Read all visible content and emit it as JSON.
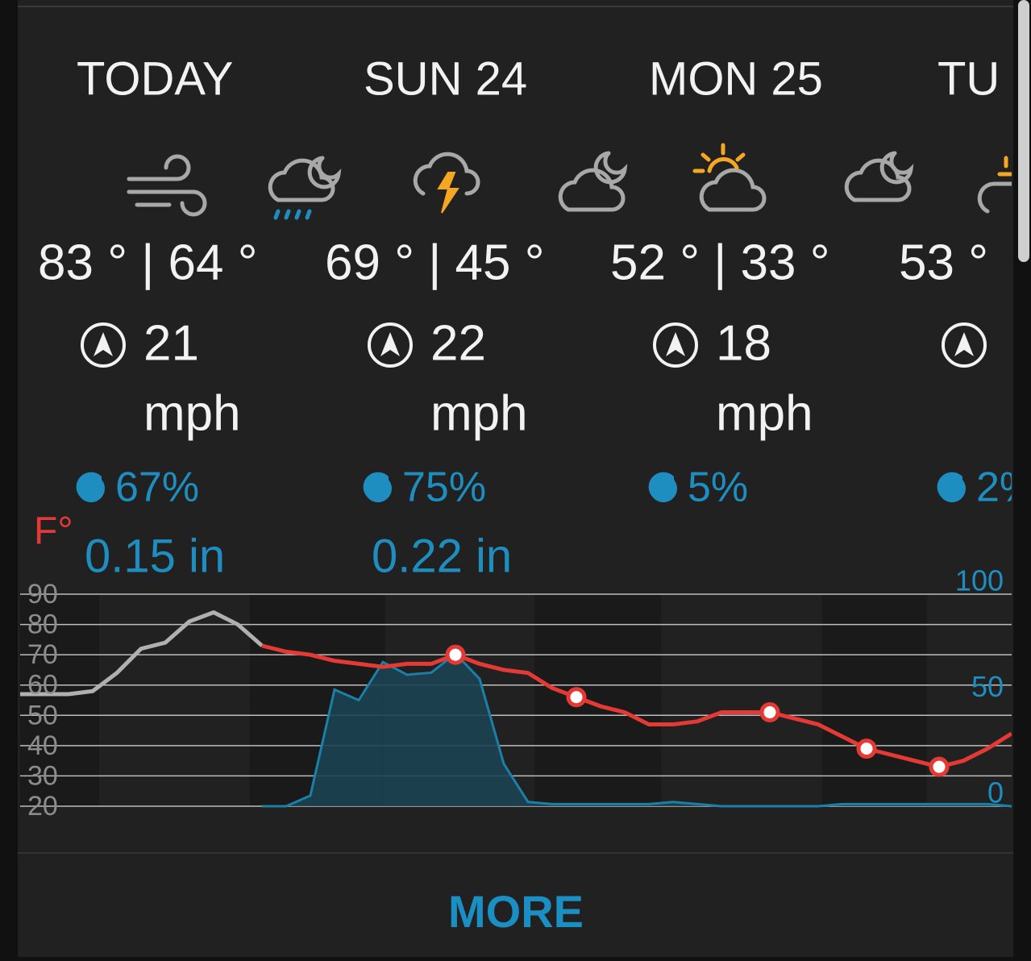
{
  "columns": [
    {
      "day": "TODAY",
      "temperature": "83 ° | 64 °",
      "wind_speed": "21",
      "wind_unit": "mph",
      "precip_chance": "67%",
      "precip_amount": "0.15 in"
    },
    {
      "day": "SUN 24",
      "temperature": "69 ° | 45 °",
      "wind_speed": "22",
      "wind_unit": "mph",
      "precip_chance": "75%",
      "precip_amount": "0.22 in"
    },
    {
      "day": "MON 25",
      "temperature": "52 ° | 33 °",
      "wind_speed": "18",
      "wind_unit": "mph",
      "precip_chance": "5%"
    },
    {
      "day": "TU",
      "temperature": "53 °",
      "precip_chance": "2%"
    }
  ],
  "chart_data": {
    "type": "line",
    "y_label": "F°",
    "ylim": [
      20,
      90
    ],
    "yticks": [
      20,
      30,
      40,
      50,
      60,
      70,
      80,
      90
    ],
    "y2lim": [
      0,
      100
    ],
    "y2ticks": [
      0,
      50,
      100
    ],
    "grid": true,
    "series": [
      {
        "color": "#b0b0b0",
        "values": [
          57,
          57,
          57,
          58,
          64,
          72,
          74,
          81,
          84,
          80,
          73,
          null,
          null,
          null,
          null,
          null,
          null,
          null,
          null,
          null,
          null,
          null,
          null,
          null,
          null,
          null,
          null,
          null,
          null,
          null,
          null,
          null,
          null,
          null,
          null,
          null,
          null,
          null,
          null,
          null,
          null,
          null
        ]
      },
      {
        "color": "#e53935",
        "values": [
          null,
          null,
          null,
          null,
          null,
          null,
          null,
          null,
          null,
          null,
          73,
          71,
          70,
          68,
          67,
          66,
          67,
          67,
          70,
          67,
          65,
          64,
          59,
          56,
          53,
          51,
          47,
          47,
          48,
          51,
          51,
          51,
          49,
          47,
          43,
          39,
          37,
          35,
          33,
          35,
          39,
          44
        ]
      },
      {
        "color": "#e53935",
        "style": "points",
        "values": [
          null,
          null,
          null,
          null,
          null,
          null,
          null,
          null,
          null,
          null,
          null,
          null,
          null,
          null,
          null,
          null,
          null,
          null,
          70,
          null,
          null,
          null,
          null,
          56,
          null,
          null,
          null,
          null,
          null,
          null,
          null,
          51,
          null,
          null,
          null,
          39,
          null,
          null,
          33,
          null,
          null,
          null
        ]
      },
      {
        "color": "#1b7fa6",
        "fill": "#1c4252",
        "style": "area",
        "axis": "y2",
        "values": [
          null,
          null,
          null,
          null,
          null,
          null,
          null,
          null,
          null,
          null,
          0,
          0,
          5,
          55,
          50,
          68,
          62,
          63,
          72,
          60,
          20,
          2,
          1,
          1,
          1,
          1,
          1,
          2,
          1,
          0,
          0,
          0,
          0,
          0,
          1,
          1,
          1,
          1,
          1,
          1,
          1,
          0
        ]
      }
    ]
  },
  "more_button": "MORE"
}
